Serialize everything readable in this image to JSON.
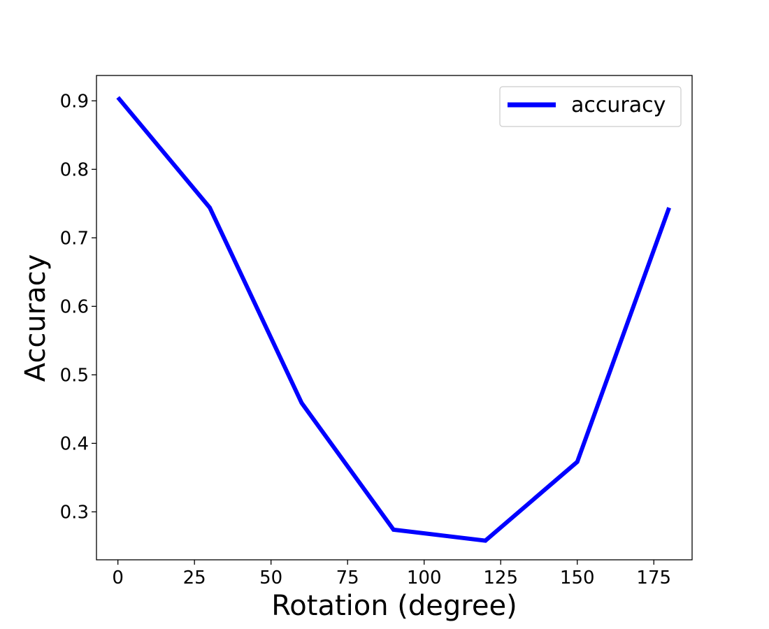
{
  "chart_data": {
    "type": "line",
    "title": "",
    "xlabel": "Rotation (degree)",
    "ylabel": "Accuracy",
    "xlim": [
      -7,
      187.5
    ],
    "ylim": [
      0.23,
      0.937
    ],
    "xticks": [
      0,
      25,
      50,
      75,
      100,
      125,
      150,
      175
    ],
    "yticks": [
      0.3,
      0.4,
      0.5,
      0.6,
      0.7,
      0.8,
      0.9
    ],
    "grid": false,
    "legend_position": "top-right",
    "x": [
      0,
      30,
      60,
      90,
      120,
      150,
      180
    ],
    "series": [
      {
        "name": "accuracy",
        "color": "#0000ff",
        "values": [
          0.905,
          0.744,
          0.459,
          0.274,
          0.258,
          0.373,
          0.744
        ]
      }
    ]
  }
}
